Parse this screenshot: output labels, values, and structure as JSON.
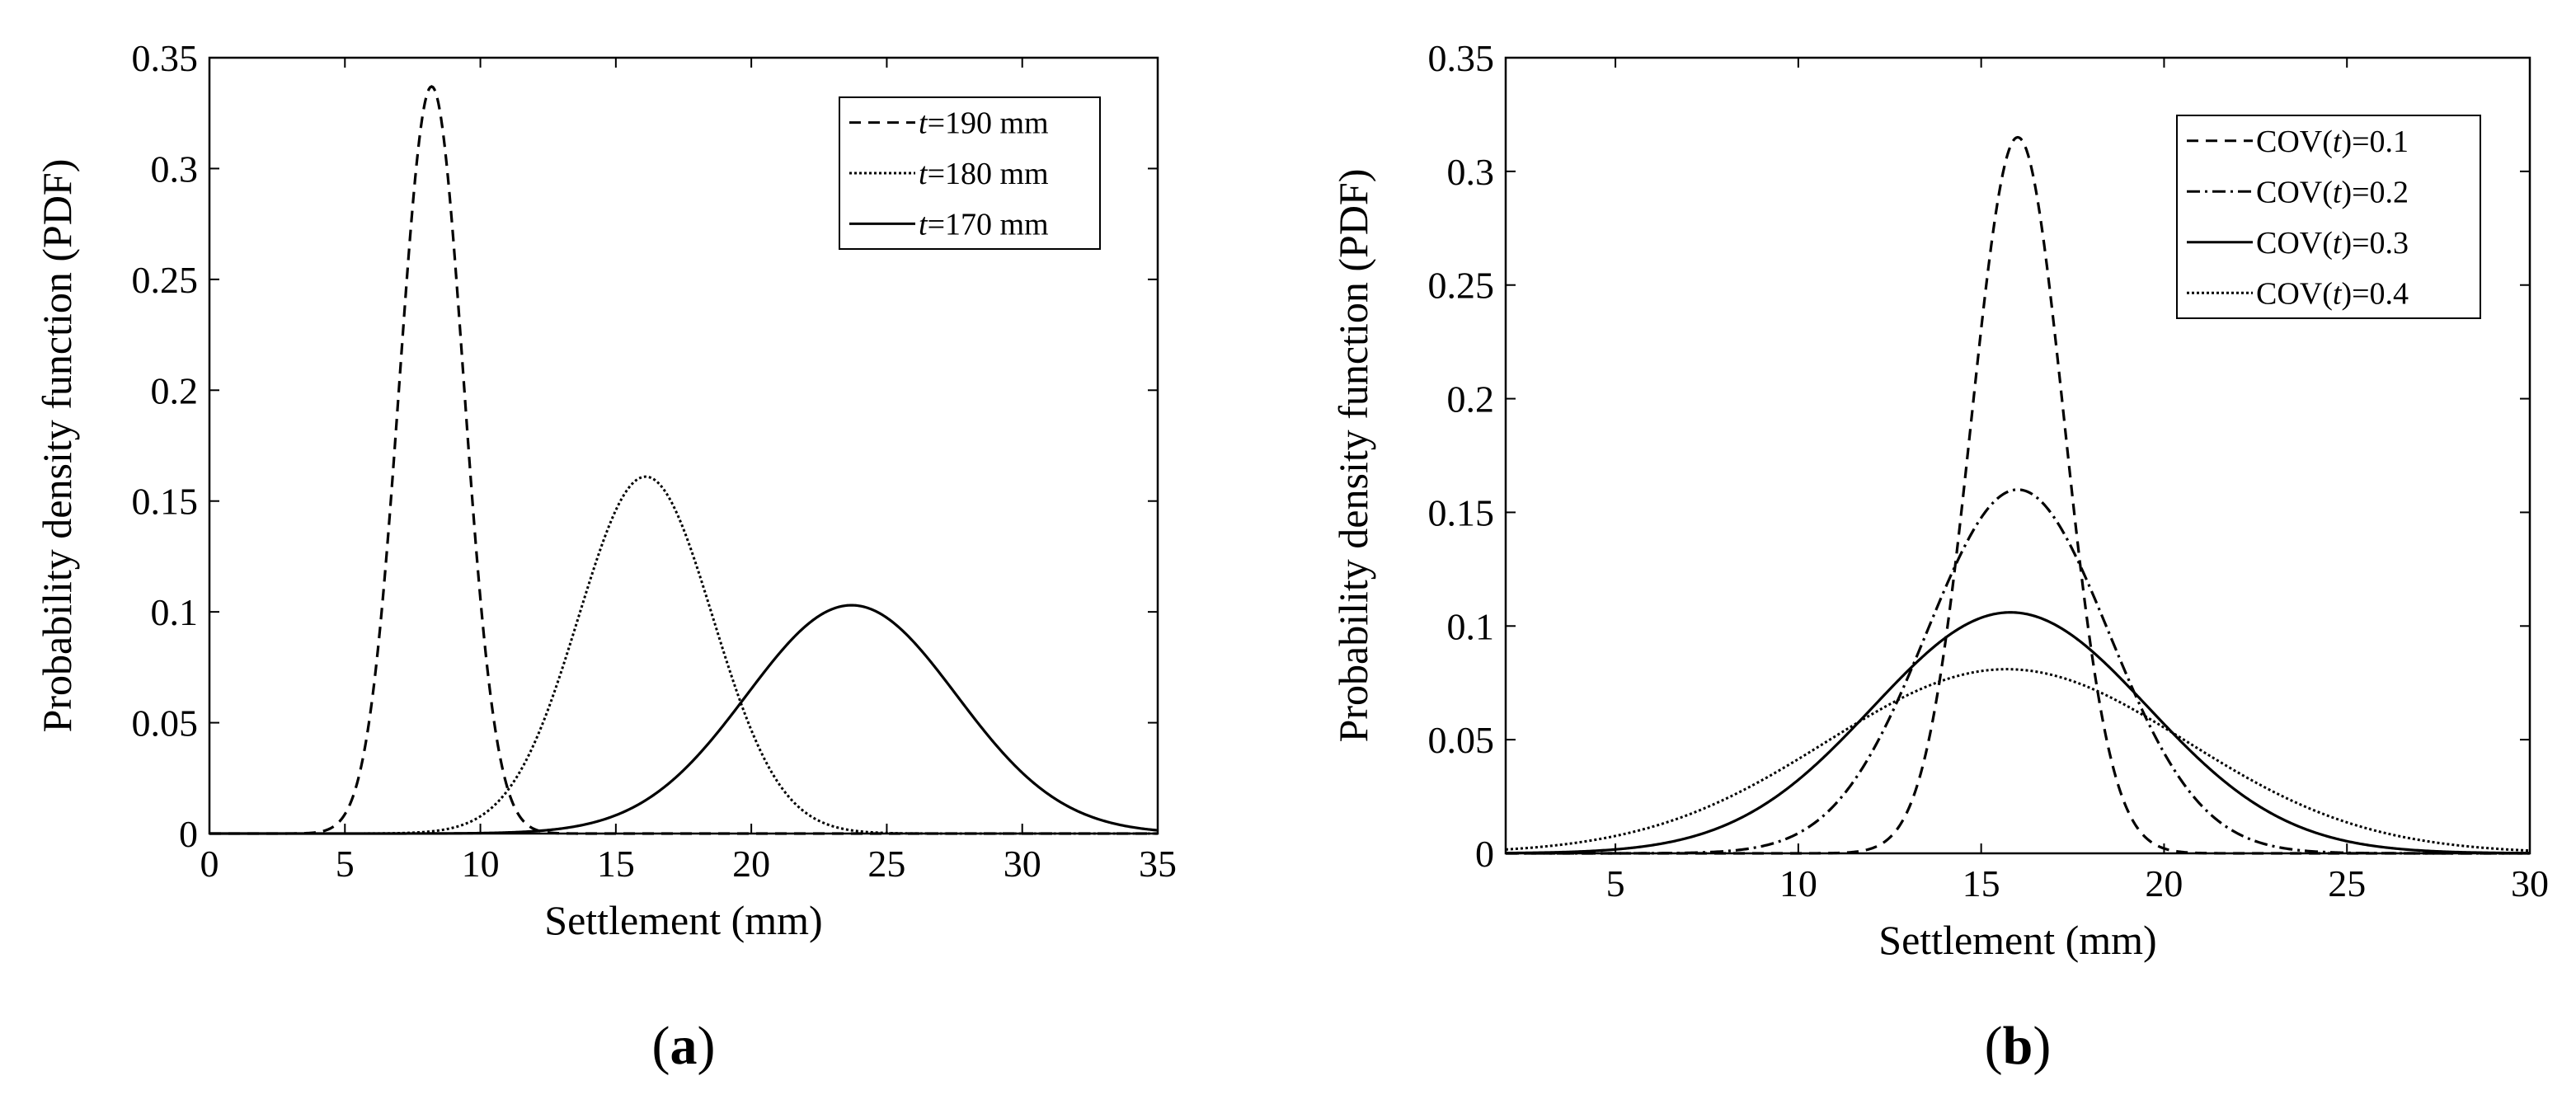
{
  "chart_data": [
    {
      "type": "line",
      "panel_label": "a",
      "xlabel": "Settlement (mm)",
      "ylabel": "Probability density function (PDF)",
      "xlim": [
        0,
        35
      ],
      "ylim": [
        0,
        0.35
      ],
      "xticks": [
        0,
        5,
        10,
        15,
        20,
        25,
        30,
        35
      ],
      "yticks": [
        0,
        0.05,
        0.1,
        0.15,
        0.2,
        0.25,
        0.3,
        0.35
      ],
      "xtick_labels": [
        "0",
        "5",
        "10",
        "15",
        "20",
        "25",
        "30",
        "35"
      ],
      "ytick_labels": [
        "0",
        "0.05",
        "0.1",
        "0.15",
        "0.2",
        "0.25",
        "0.3",
        "0.35"
      ],
      "legend_position": "top-right",
      "series": [
        {
          "name": "t=190 mm",
          "name_italic": "t",
          "name_rest": "=190 mm",
          "style": "dashed",
          "mean": 8.2,
          "peak": 0.337
        },
        {
          "name": "t=180 mm",
          "name_italic": "t",
          "name_rest": "=180 mm",
          "style": "dotted",
          "mean": 16.1,
          "peak": 0.161
        },
        {
          "name": "t=170 mm",
          "name_italic": "t",
          "name_rest": "=170 mm",
          "style": "solid",
          "mean": 23.7,
          "peak": 0.103
        }
      ]
    },
    {
      "type": "line",
      "panel_label": "b",
      "xlabel": "Settlement (mm)",
      "ylabel": "Probability density function (PDF)",
      "xlim": [
        2,
        30
      ],
      "ylim": [
        0,
        0.35
      ],
      "xticks": [
        5,
        10,
        15,
        20,
        25,
        30
      ],
      "yticks": [
        0,
        0.05,
        0.1,
        0.15,
        0.2,
        0.25,
        0.3,
        0.35
      ],
      "xtick_labels": [
        "5",
        "10",
        "15",
        "20",
        "25",
        "30"
      ],
      "ytick_labels": [
        "0",
        "0.05",
        "0.1",
        "0.15",
        "0.2",
        "0.25",
        "0.3",
        "0.35"
      ],
      "legend_position": "top-right",
      "series": [
        {
          "name": "COV(t)=0.1",
          "name_pre": "COV(",
          "name_italic": "t",
          "name_rest": ")=0.1",
          "style": "dashed",
          "mean": 16.0,
          "peak": 0.315
        },
        {
          "name": "COV(t)=0.2",
          "name_pre": "COV(",
          "name_italic": "t",
          "name_rest": ")=0.2",
          "style": "dashdot",
          "mean": 16.0,
          "peak": 0.16
        },
        {
          "name": "COV(t)=0.3",
          "name_pre": "COV(",
          "name_italic": "t",
          "name_rest": ")=0.3",
          "style": "solid",
          "mean": 15.8,
          "peak": 0.106
        },
        {
          "name": "COV(t)=0.4",
          "name_pre": "COV(",
          "name_italic": "t",
          "name_rest": ")=0.4",
          "style": "dotted",
          "mean": 15.7,
          "peak": 0.081
        }
      ]
    }
  ]
}
